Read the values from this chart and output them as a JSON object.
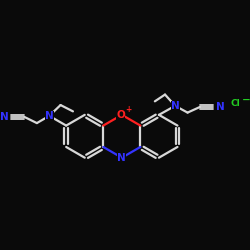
{
  "bg_color": "#0a0a0a",
  "bond_color": "#d8d8d8",
  "n_color": "#3333ff",
  "o_color": "#ff2020",
  "cl_color": "#22cc22",
  "figsize": [
    2.5,
    2.5
  ],
  "dpi": 100,
  "xlim": [
    0,
    10
  ],
  "ylim": [
    3.5,
    8.5
  ],
  "bond_lw": 1.6,
  "label_fontsize": 6.5
}
